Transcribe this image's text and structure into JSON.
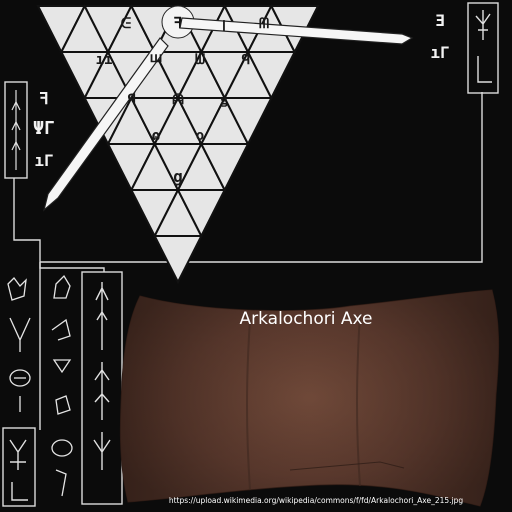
{
  "title": "Arkalochori Axe",
  "source_url": "https://upload.wikimedia.org/wikipedia/commons/f/fd/Arkalochori_Axe_215.jpg",
  "colors": {
    "background": "#0b0b0b",
    "triangle_fill": "#e6e6e6",
    "line": "#dcdcdc",
    "axe_bronze": "#5a3a2e"
  },
  "icons": {
    "pointer_needles": "arrow-needle-icon",
    "side_columns": "linear-a-glyph-icon",
    "axe": "double-axe-photo"
  }
}
